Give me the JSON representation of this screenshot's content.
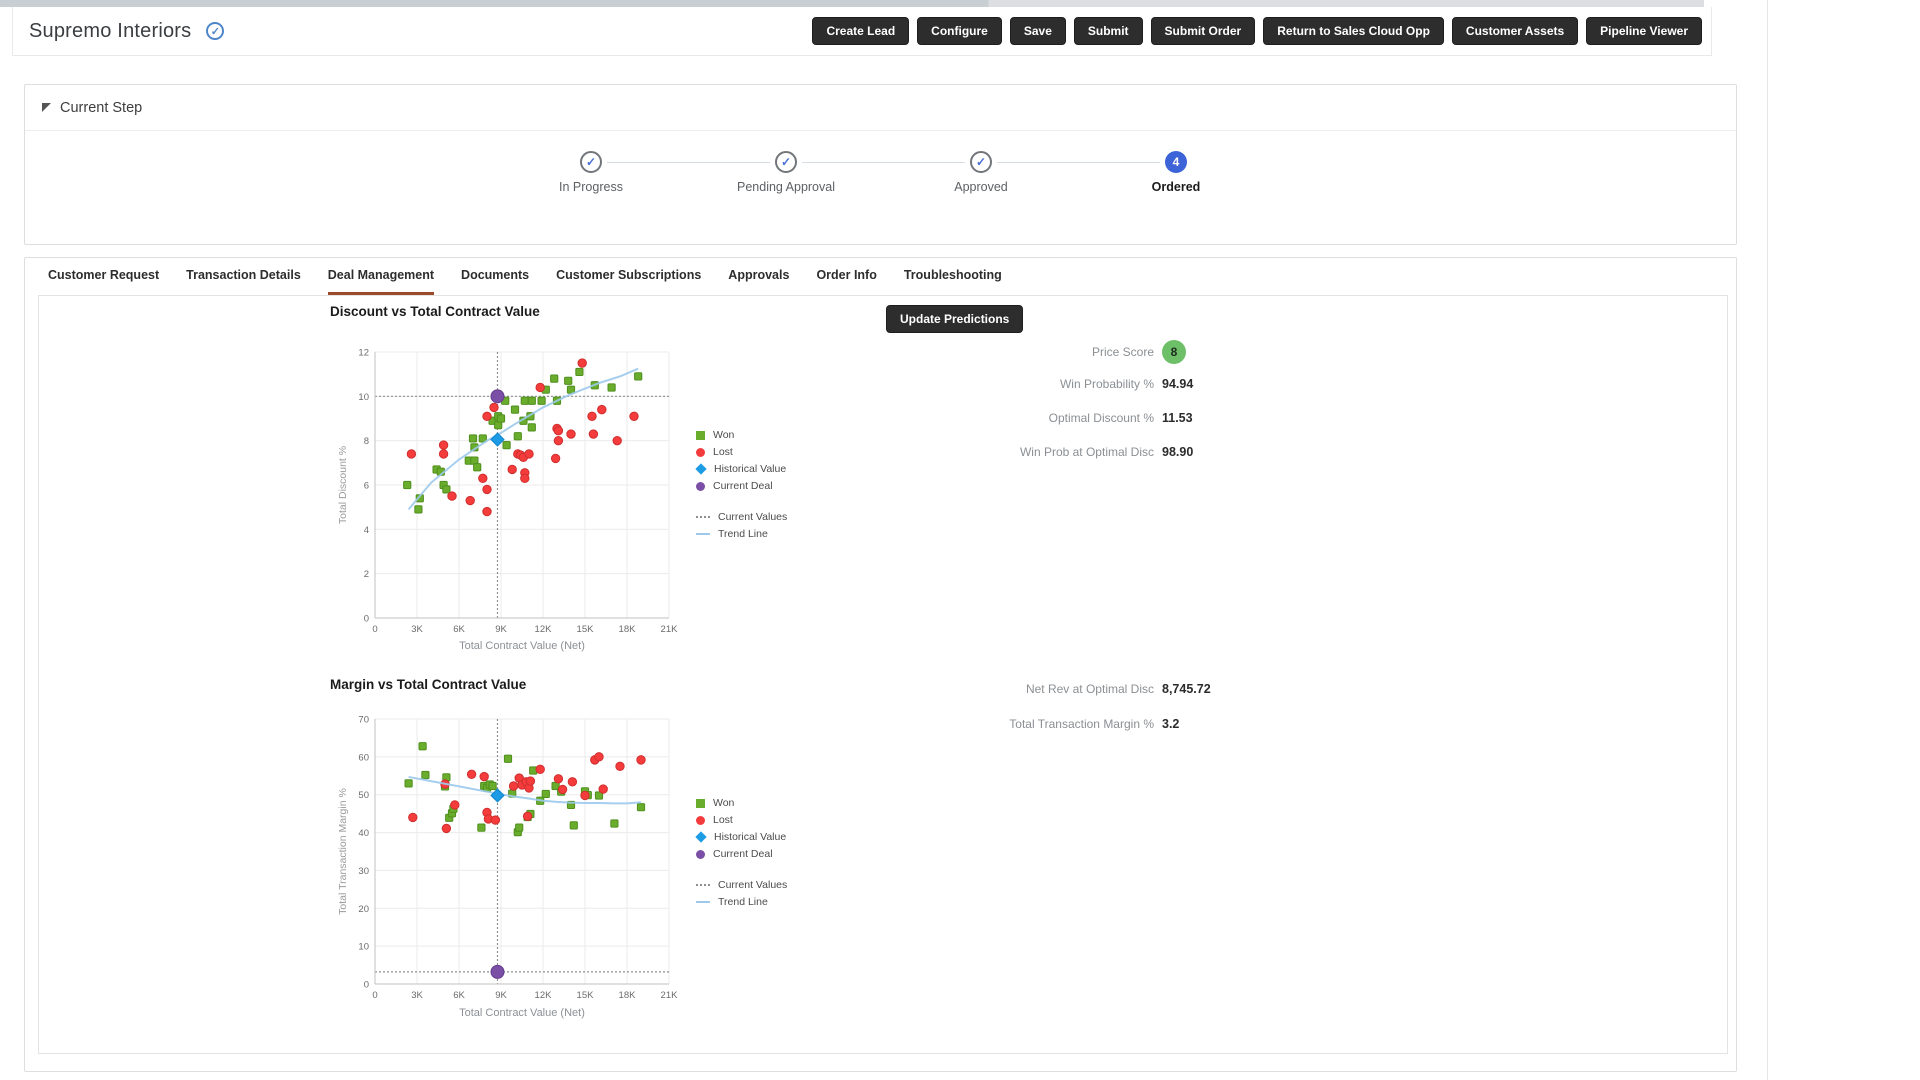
{
  "header": {
    "title": "Supremo Interiors",
    "buttons": [
      "Create Lead",
      "Configure",
      "Save",
      "Submit",
      "Submit Order",
      "Return to Sales Cloud Opp",
      "Customer Assets",
      "Pipeline Viewer"
    ]
  },
  "current_step": {
    "section_title": "Current Step",
    "steps": [
      {
        "label": "In Progress",
        "status": "complete",
        "icon": "check"
      },
      {
        "label": "Pending Approval",
        "status": "complete",
        "icon": "check"
      },
      {
        "label": "Approved",
        "status": "complete",
        "icon": "check"
      },
      {
        "label": "Ordered",
        "status": "current",
        "number": "4"
      }
    ]
  },
  "tabs": [
    {
      "label": "Customer Request",
      "active": false
    },
    {
      "label": "Transaction Details",
      "active": false
    },
    {
      "label": "Deal Management",
      "active": true
    },
    {
      "label": "Documents",
      "active": false
    },
    {
      "label": "Customer Subscriptions",
      "active": false
    },
    {
      "label": "Approvals",
      "active": false
    },
    {
      "label": "Order Info",
      "active": false
    },
    {
      "label": "Troubleshooting",
      "active": false
    }
  ],
  "deal_management": {
    "update_button": "Update Predictions",
    "stats_top": [
      {
        "label": "Price Score",
        "value": "8",
        "type": "badge"
      },
      {
        "label": "Win Probability %",
        "value": "94.94"
      },
      {
        "label": "Optimal Discount %",
        "value": "11.53"
      },
      {
        "label": "Win Prob at Optimal Disc",
        "value": "98.90"
      }
    ],
    "stats_bottom": [
      {
        "label": "Net Rev at Optimal Disc",
        "value": "8,745.72"
      },
      {
        "label": "Total Transaction Margin %",
        "value": "3.2"
      }
    ]
  },
  "colors": {
    "won": "#6aad2c",
    "won_stroke": "#4f8f1e",
    "lost": "#f43c3c",
    "lost_stroke": "#d02e2e",
    "historical": "#1d9ce5",
    "historical_stroke": "#0f84cc",
    "current_deal": "#7b4fa6",
    "current_deal_stroke": "#633d8f",
    "trend": "#9cc9ec",
    "crosshair": "#8f8f8f",
    "grid": "#ebebeb",
    "axis": "#c2c2c2",
    "badge_green": "#6dbf68",
    "button_dark": "#2d2d2d",
    "active_tab_underline": "#9d4a2c",
    "step_current_blue": "#3d63d8",
    "step_check_blue": "#4a6fd4"
  },
  "chart_data": [
    {
      "type": "scatter",
      "title": "Discount vs Total Contract Value",
      "xlabel": "Total Contract Value (Net)",
      "ylabel": "Total Discount %",
      "x_unit": "thousands",
      "xlim": [
        0,
        21
      ],
      "ylim": [
        0,
        12
      ],
      "xtick_values": [
        0,
        3,
        6,
        9,
        12,
        15,
        18,
        21
      ],
      "xtick_labels": [
        "0",
        "3K",
        "6K",
        "9K",
        "12K",
        "15K",
        "18K",
        "21K"
      ],
      "ytick_values": [
        0,
        2,
        4,
        6,
        8,
        10,
        12
      ],
      "grid": true,
      "legend_position": "right",
      "series": [
        {
          "name": "Won",
          "marker": "square",
          "color_key": "won",
          "points": [
            [
              2.3,
              6.0
            ],
            [
              3.1,
              4.9
            ],
            [
              3.2,
              5.4
            ],
            [
              4.4,
              6.7
            ],
            [
              4.7,
              6.6
            ],
            [
              4.9,
              6.0
            ],
            [
              5.1,
              5.8
            ],
            [
              6.7,
              7.1
            ],
            [
              7.0,
              8.1
            ],
            [
              7.1,
              7.7
            ],
            [
              7.1,
              7.1
            ],
            [
              7.3,
              6.8
            ],
            [
              7.7,
              8.1
            ],
            [
              8.4,
              8.9
            ],
            [
              8.8,
              9.1
            ],
            [
              8.8,
              8.7
            ],
            [
              9.0,
              9.0
            ],
            [
              9.3,
              9.8
            ],
            [
              9.4,
              7.8
            ],
            [
              10.0,
              9.4
            ],
            [
              10.2,
              8.2
            ],
            [
              10.6,
              8.9
            ],
            [
              10.7,
              9.8
            ],
            [
              11.1,
              9.1
            ],
            [
              11.2,
              9.8
            ],
            [
              11.2,
              8.6
            ],
            [
              11.9,
              9.8
            ],
            [
              12.2,
              10.3
            ],
            [
              12.8,
              10.8
            ],
            [
              13.0,
              9.8
            ],
            [
              13.8,
              10.7
            ],
            [
              14.0,
              10.3
            ],
            [
              14.6,
              11.1
            ],
            [
              15.7,
              10.5
            ],
            [
              16.9,
              10.4
            ],
            [
              18.8,
              10.9
            ]
          ]
        },
        {
          "name": "Lost",
          "marker": "circle",
          "color_key": "lost",
          "points": [
            [
              2.6,
              7.4
            ],
            [
              4.9,
              7.8
            ],
            [
              4.9,
              7.4
            ],
            [
              5.5,
              5.5
            ],
            [
              6.8,
              5.3
            ],
            [
              7.7,
              6.3
            ],
            [
              8.0,
              9.1
            ],
            [
              8.0,
              5.8
            ],
            [
              8.0,
              4.8
            ],
            [
              8.5,
              9.5
            ],
            [
              9.8,
              6.7
            ],
            [
              10.2,
              7.4
            ],
            [
              10.4,
              7.35
            ],
            [
              10.6,
              7.25
            ],
            [
              10.7,
              6.55
            ],
            [
              10.7,
              6.3
            ],
            [
              11.0,
              7.4
            ],
            [
              11.8,
              10.4
            ],
            [
              12.9,
              7.2
            ],
            [
              13.0,
              8.55
            ],
            [
              13.1,
              8.45
            ],
            [
              13.1,
              8.0
            ],
            [
              14.0,
              8.3
            ],
            [
              14.8,
              11.5
            ],
            [
              15.5,
              9.1
            ],
            [
              15.6,
              8.3
            ],
            [
              16.2,
              9.4
            ],
            [
              17.3,
              8.0
            ],
            [
              18.5,
              9.1
            ]
          ]
        }
      ],
      "trend_line": [
        [
          2.4,
          4.9
        ],
        [
          4,
          6.1
        ],
        [
          6,
          7.15
        ],
        [
          8,
          8.0
        ],
        [
          9,
          8.35
        ],
        [
          10,
          8.75
        ],
        [
          12,
          9.5
        ],
        [
          14,
          10.1
        ],
        [
          16,
          10.6
        ],
        [
          17.5,
          10.9
        ],
        [
          18.8,
          11.25
        ]
      ],
      "historical_value": {
        "x": 8.75,
        "y": 8.05
      },
      "current_deal": {
        "x": 8.75,
        "y": 10
      },
      "current_values": {
        "x": 8.75,
        "y": 10
      },
      "legend_items": [
        {
          "label": "Won",
          "marker": "square",
          "color_key": "won"
        },
        {
          "label": "Lost",
          "marker": "circle",
          "color_key": "lost"
        },
        {
          "label": "Historical Value",
          "marker": "diamond",
          "color_key": "historical"
        },
        {
          "label": "Current Deal",
          "marker": "circle",
          "color_key": "current_deal"
        },
        {
          "label": "Current Values",
          "marker": "dotted",
          "color_key": "crosshair"
        },
        {
          "label": "Trend Line",
          "marker": "line",
          "color_key": "trend"
        }
      ]
    },
    {
      "type": "scatter",
      "title": "Margin vs Total Contract Value",
      "xlabel": "Total Contract Value (Net)",
      "ylabel": "Total Transaction Margin %",
      "x_unit": "thousands",
      "xlim": [
        0,
        21
      ],
      "ylim": [
        0,
        70
      ],
      "xtick_values": [
        0,
        3,
        6,
        9,
        12,
        15,
        18,
        21
      ],
      "xtick_labels": [
        "0",
        "3K",
        "6K",
        "9K",
        "12K",
        "15K",
        "18K",
        "21K"
      ],
      "ytick_values": [
        0,
        10,
        20,
        30,
        40,
        50,
        60,
        70
      ],
      "grid": true,
      "legend_position": "right",
      "series": [
        {
          "name": "Won",
          "marker": "square",
          "color_key": "won",
          "points": [
            [
              2.4,
              53.0
            ],
            [
              3.4,
              62.8
            ],
            [
              3.6,
              55.2
            ],
            [
              5.0,
              52.2
            ],
            [
              5.1,
              54.6
            ],
            [
              5.3,
              43.9
            ],
            [
              5.5,
              45.1
            ],
            [
              5.6,
              46.3
            ],
            [
              7.6,
              41.3
            ],
            [
              7.8,
              52.3
            ],
            [
              8.0,
              51.8
            ],
            [
              8.2,
              52.7
            ],
            [
              8.4,
              52.3
            ],
            [
              9.5,
              59.5
            ],
            [
              9.8,
              50.3
            ],
            [
              10.2,
              40.1
            ],
            [
              10.3,
              41.3
            ],
            [
              10.9,
              44.1
            ],
            [
              11.1,
              44.9
            ],
            [
              11.3,
              56.4
            ],
            [
              11.8,
              48.4
            ],
            [
              12.2,
              50.2
            ],
            [
              12.9,
              52.3
            ],
            [
              13.3,
              50.8
            ],
            [
              14.0,
              47.3
            ],
            [
              14.2,
              41.9
            ],
            [
              15.0,
              50.9
            ],
            [
              15.2,
              49.9
            ],
            [
              16.0,
              49.8
            ],
            [
              17.1,
              42.4
            ],
            [
              19.0,
              46.7
            ]
          ]
        },
        {
          "name": "Lost",
          "marker": "circle",
          "color_key": "lost",
          "points": [
            [
              2.7,
              44.0
            ],
            [
              5.0,
              52.8
            ],
            [
              5.1,
              41.1
            ],
            [
              5.7,
              47.3
            ],
            [
              6.9,
              55.4
            ],
            [
              7.8,
              54.8
            ],
            [
              8.0,
              45.3
            ],
            [
              8.1,
              43.6
            ],
            [
              8.6,
              43.3
            ],
            [
              9.9,
              52.3
            ],
            [
              10.3,
              54.4
            ],
            [
              10.5,
              52.6
            ],
            [
              10.8,
              53.4
            ],
            [
              10.9,
              44.3
            ],
            [
              11.0,
              51.8
            ],
            [
              11.1,
              53.6
            ],
            [
              11.8,
              56.7
            ],
            [
              13.1,
              54.2
            ],
            [
              13.4,
              51.4
            ],
            [
              14.1,
              53.4
            ],
            [
              15.0,
              49.8
            ],
            [
              15.7,
              59.2
            ],
            [
              16.0,
              60.0
            ],
            [
              16.3,
              51.5
            ],
            [
              17.5,
              57.5
            ],
            [
              19.0,
              59.2
            ]
          ]
        }
      ],
      "trend_line": [
        [
          2.4,
          54.7
        ],
        [
          4,
          53.6
        ],
        [
          6,
          52.2
        ],
        [
          8,
          50.8
        ],
        [
          9,
          50.1
        ],
        [
          10,
          49.5
        ],
        [
          11,
          49.0
        ],
        [
          12,
          48.4
        ],
        [
          13,
          48.1
        ],
        [
          14,
          47.9
        ],
        [
          15,
          47.8
        ],
        [
          16,
          47.8
        ],
        [
          17,
          47.7
        ],
        [
          18,
          47.7
        ],
        [
          19,
          48.0
        ]
      ],
      "historical_value": {
        "x": 8.75,
        "y": 49.8
      },
      "current_deal": {
        "x": 8.75,
        "y": 3.2
      },
      "current_values": {
        "x": 8.75,
        "y": 3.2
      },
      "legend_items": [
        {
          "label": "Won",
          "marker": "square",
          "color_key": "won"
        },
        {
          "label": "Lost",
          "marker": "circle",
          "color_key": "lost"
        },
        {
          "label": "Historical Value",
          "marker": "diamond",
          "color_key": "historical"
        },
        {
          "label": "Current Deal",
          "marker": "circle",
          "color_key": "current_deal"
        },
        {
          "label": "Current Values",
          "marker": "dotted",
          "color_key": "crosshair"
        },
        {
          "label": "Trend Line",
          "marker": "line",
          "color_key": "trend"
        }
      ]
    }
  ]
}
